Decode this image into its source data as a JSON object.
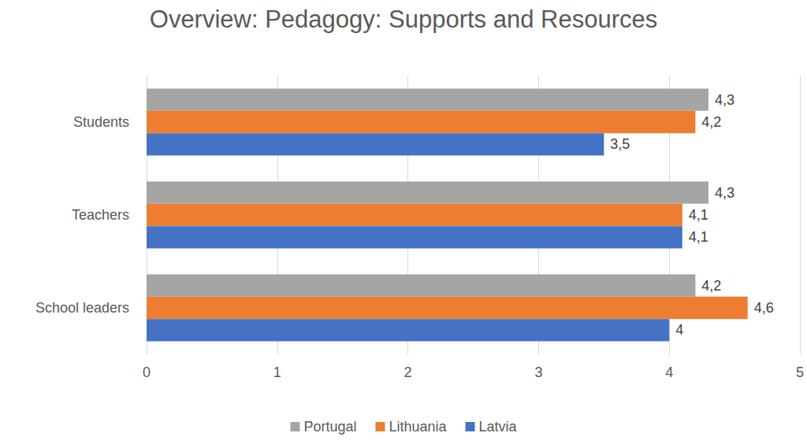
{
  "chart_data": {
    "type": "bar",
    "title": "Overview: Pedagogy: Supports and Resources",
    "orientation": "horizontal",
    "categories": [
      "Students",
      "Teachers",
      "School leaders"
    ],
    "series": [
      {
        "name": "Portugal",
        "color": "#a5a5a5",
        "values": [
          4.3,
          4.3,
          4.2
        ],
        "value_labels": [
          "4,3",
          "4,3",
          "4,2"
        ]
      },
      {
        "name": "Lithuania",
        "color": "#ed7d31",
        "values": [
          4.2,
          4.1,
          4.6
        ],
        "value_labels": [
          "4,2",
          "4,1",
          "4,6"
        ]
      },
      {
        "name": "Latvia",
        "color": "#4472c4",
        "values": [
          3.5,
          4.1,
          4
        ],
        "value_labels": [
          "3,5",
          "4,1",
          "4"
        ]
      }
    ],
    "xlim": [
      0,
      5
    ],
    "xticks": [
      0,
      1,
      2,
      3,
      4,
      5
    ],
    "grid": true,
    "legend": "bottom",
    "data_labels": true
  }
}
